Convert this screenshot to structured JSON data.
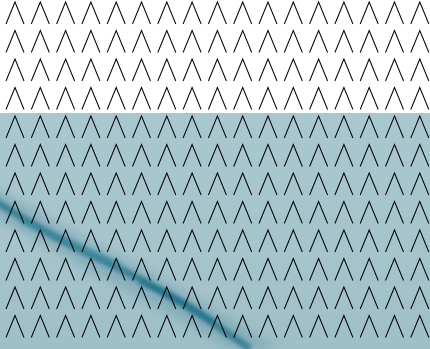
{
  "pattern": {
    "motif": "chevron-up",
    "rows": 12,
    "columns": 17,
    "stroke_color": "#000000",
    "stroke_width": 1
  },
  "backdrop": {
    "upper_color": "#ffffff",
    "lower_color": "#a8c6ce",
    "streak_color": "#2f7e93"
  }
}
